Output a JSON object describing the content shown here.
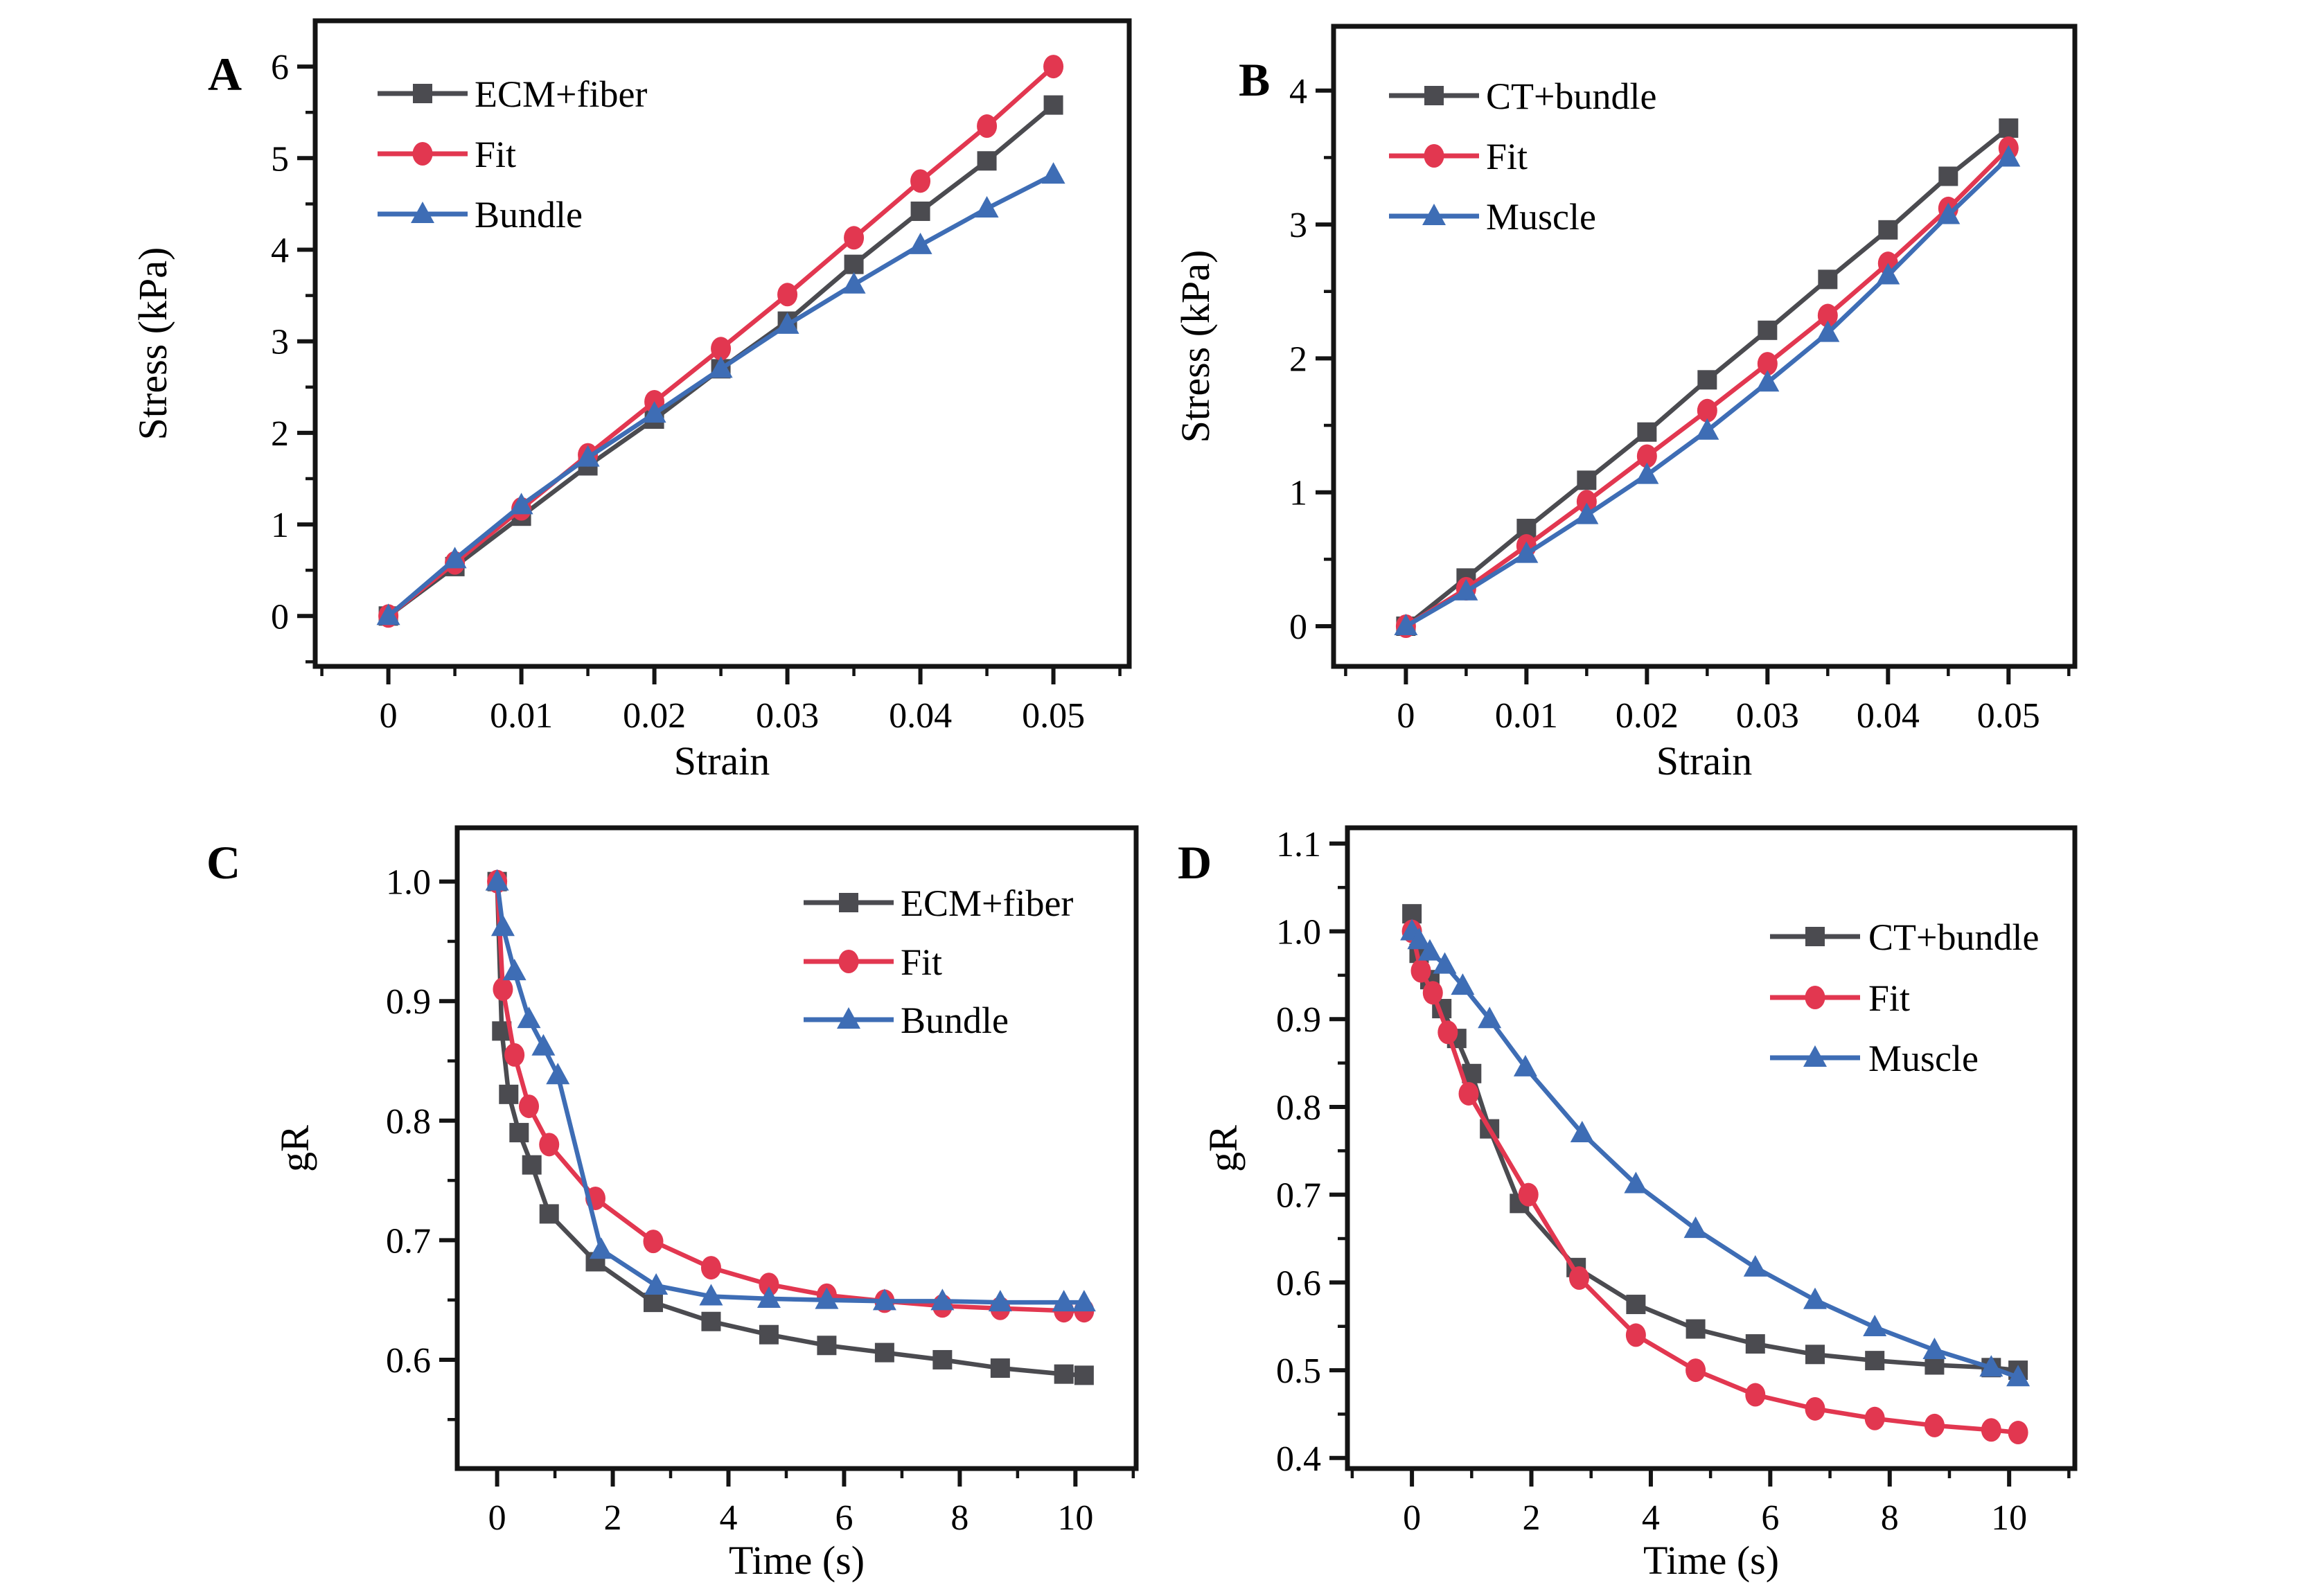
{
  "figure": {
    "background": "#ffffff",
    "panel_letters": [
      "A",
      "B",
      "C",
      "D"
    ]
  },
  "colors": {
    "axis": "#141414",
    "text": "#000000",
    "gray": "#4B4B50",
    "red": "#E23750",
    "blue": "#3E6DB5"
  },
  "chart_data": [
    {
      "id": "A",
      "type": "line",
      "panel_label": "A",
      "title": "",
      "xlabel": "Strain",
      "ylabel": "Stress (kPa)",
      "xlim": [
        -0.0055,
        0.0557
      ],
      "ylim": [
        -0.55,
        6.5
      ],
      "xminor": 0.005,
      "yminor": 0.5,
      "grid": false,
      "legend_position": "top-left",
      "xticks": {
        "values": [
          0,
          0.01,
          0.02,
          0.03,
          0.04,
          0.05
        ],
        "labels": [
          "0",
          "0.01",
          "0.02",
          "0.03",
          "0.04",
          "0.05"
        ]
      },
      "yticks": {
        "values": [
          0,
          1,
          2,
          3,
          4,
          5,
          6
        ],
        "labels": [
          "0",
          "1",
          "2",
          "3",
          "4",
          "5",
          "6"
        ]
      },
      "series": [
        {
          "name": "ECM+fiber",
          "color": "gray",
          "marker": "square",
          "x": [
            0,
            0.005,
            0.01,
            0.015,
            0.02,
            0.025,
            0.03,
            0.035,
            0.04,
            0.045,
            0.05
          ],
          "y": [
            0,
            0.54,
            1.09,
            1.64,
            2.15,
            2.7,
            3.22,
            3.84,
            4.42,
            4.97,
            5.58
          ]
        },
        {
          "name": "Fit",
          "color": "red",
          "marker": "circle",
          "x": [
            0,
            0.005,
            0.01,
            0.015,
            0.02,
            0.025,
            0.03,
            0.035,
            0.04,
            0.045,
            0.05
          ],
          "y": [
            0,
            0.58,
            1.17,
            1.76,
            2.34,
            2.92,
            3.51,
            4.13,
            4.75,
            5.35,
            6.0
          ]
        },
        {
          "name": "Bundle",
          "color": "blue",
          "marker": "triangle",
          "x": [
            0,
            0.005,
            0.01,
            0.015,
            0.02,
            0.025,
            0.03,
            0.035,
            0.04,
            0.045,
            0.05
          ],
          "y": [
            0,
            0.62,
            1.21,
            1.73,
            2.21,
            2.7,
            3.18,
            3.62,
            4.05,
            4.45,
            4.82
          ]
        }
      ]
    },
    {
      "id": "B",
      "type": "line",
      "panel_label": "B",
      "title": "",
      "xlabel": "Strain",
      "ylabel": "Stress (kPa)",
      "xlim": [
        -0.006,
        0.0555
      ],
      "ylim": [
        -0.3,
        4.48
      ],
      "xminor": 0.005,
      "yminor": 0.5,
      "grid": false,
      "legend_position": "top-left",
      "xticks": {
        "values": [
          0,
          0.01,
          0.02,
          0.03,
          0.04,
          0.05
        ],
        "labels": [
          "0",
          "0.01",
          "0.02",
          "0.03",
          "0.04",
          "0.05"
        ]
      },
      "yticks": {
        "values": [
          0,
          1,
          2,
          3,
          4
        ],
        "labels": [
          "0",
          "1",
          "2",
          "3",
          "4"
        ]
      },
      "series": [
        {
          "name": "CT+bundle",
          "color": "gray",
          "marker": "square",
          "x": [
            0,
            0.005,
            0.01,
            0.015,
            0.02,
            0.025,
            0.03,
            0.035,
            0.04,
            0.045,
            0.05
          ],
          "y": [
            0,
            0.36,
            0.73,
            1.09,
            1.45,
            1.84,
            2.21,
            2.59,
            2.96,
            3.36,
            3.72
          ]
        },
        {
          "name": "Fit",
          "color": "red",
          "marker": "circle",
          "x": [
            0,
            0.005,
            0.01,
            0.015,
            0.02,
            0.025,
            0.03,
            0.035,
            0.04,
            0.045,
            0.05
          ],
          "y": [
            0,
            0.28,
            0.6,
            0.93,
            1.27,
            1.61,
            1.96,
            2.32,
            2.71,
            3.12,
            3.57
          ]
        },
        {
          "name": "Muscle",
          "color": "blue",
          "marker": "triangle",
          "x": [
            0,
            0.005,
            0.01,
            0.015,
            0.02,
            0.025,
            0.03,
            0.035,
            0.04,
            0.045,
            0.05
          ],
          "y": [
            0,
            0.26,
            0.54,
            0.83,
            1.13,
            1.46,
            1.82,
            2.19,
            2.62,
            3.07,
            3.5
          ]
        }
      ]
    },
    {
      "id": "C",
      "type": "line",
      "panel_label": "C",
      "title": "",
      "xlabel": "Time (s)",
      "ylabel": "gR",
      "xlim": [
        -0.69,
        11.05
      ],
      "ylim": [
        0.509,
        1.045
      ],
      "xminor": 1,
      "yminor": 0.05,
      "grid": false,
      "legend_position": "top-right",
      "xticks": {
        "values": [
          0,
          2,
          4,
          6,
          8,
          10
        ],
        "labels": [
          "0",
          "2",
          "4",
          "6",
          "8",
          "10"
        ]
      },
      "yticks": {
        "values": [
          0.6,
          0.7,
          0.8,
          0.9,
          1.0
        ],
        "labels": [
          "0.6",
          "0.7",
          "0.8",
          "0.9",
          "1.0"
        ]
      },
      "series": [
        {
          "name": "ECM+fiber",
          "color": "gray",
          "marker": "square",
          "x": [
            0,
            0.08,
            0.2,
            0.38,
            0.6,
            0.9,
            1.7,
            2.7,
            3.7,
            4.7,
            5.7,
            6.7,
            7.7,
            8.7,
            9.8,
            10.15
          ],
          "y": [
            1.0,
            0.875,
            0.822,
            0.79,
            0.763,
            0.722,
            0.682,
            0.648,
            0.632,
            0.621,
            0.612,
            0.606,
            0.6,
            0.593,
            0.588,
            0.587
          ]
        },
        {
          "name": "Fit",
          "color": "red",
          "marker": "circle",
          "x": [
            0,
            0.1,
            0.3,
            0.55,
            0.9,
            1.7,
            2.7,
            3.7,
            4.7,
            5.7,
            6.7,
            7.7,
            8.7,
            9.8,
            10.15
          ],
          "y": [
            1.0,
            0.91,
            0.855,
            0.812,
            0.78,
            0.735,
            0.699,
            0.677,
            0.663,
            0.654,
            0.649,
            0.645,
            0.643,
            0.641,
            0.641
          ]
        },
        {
          "name": "Bundle",
          "color": "blue",
          "marker": "triangle",
          "x": [
            0,
            0.1,
            0.3,
            0.55,
            0.8,
            1.05,
            1.8,
            2.75,
            3.7,
            4.7,
            5.7,
            6.7,
            7.7,
            8.7,
            9.8,
            10.15
          ],
          "y": [
            1.0,
            0.962,
            0.925,
            0.885,
            0.862,
            0.838,
            0.692,
            0.662,
            0.653,
            0.651,
            0.65,
            0.649,
            0.649,
            0.648,
            0.648,
            0.648
          ]
        }
      ]
    },
    {
      "id": "D",
      "type": "line",
      "panel_label": "D",
      "title": "",
      "xlabel": "Time (s)",
      "ylabel": "gR",
      "xlim": [
        -1.08,
        11.1
      ],
      "ylim": [
        0.388,
        1.118
      ],
      "xminor": 1,
      "yminor": 0.05,
      "grid": false,
      "legend_position": "top-right",
      "xticks": {
        "values": [
          0,
          2,
          4,
          6,
          8,
          10
        ],
        "labels": [
          "0",
          "2",
          "4",
          "6",
          "8",
          "10"
        ]
      },
      "yticks": {
        "values": [
          0.4,
          0.5,
          0.6,
          0.7,
          0.8,
          0.9,
          1.0,
          1.1
        ],
        "labels": [
          "0.4",
          "0.5",
          "0.6",
          "0.7",
          "0.8",
          "0.9",
          "1.0",
          "1.1"
        ]
      },
      "series": [
        {
          "name": "CT+bundle",
          "color": "gray",
          "marker": "square",
          "x": [
            0,
            0.12,
            0.3,
            0.5,
            0.75,
            1.0,
            1.3,
            1.8,
            2.75,
            3.75,
            4.75,
            5.75,
            6.75,
            7.75,
            8.75,
            9.7,
            10.15
          ],
          "y": [
            1.02,
            0.975,
            0.945,
            0.912,
            0.878,
            0.838,
            0.775,
            0.69,
            0.617,
            0.575,
            0.547,
            0.53,
            0.518,
            0.511,
            0.506,
            0.503,
            0.5
          ]
        },
        {
          "name": "Fit",
          "color": "red",
          "marker": "circle",
          "x": [
            0,
            0.15,
            0.35,
            0.6,
            0.95,
            1.95,
            2.8,
            3.75,
            4.75,
            5.75,
            6.75,
            7.75,
            8.75,
            9.7,
            10.15
          ],
          "y": [
            1.0,
            0.955,
            0.93,
            0.885,
            0.815,
            0.7,
            0.605,
            0.54,
            0.5,
            0.472,
            0.456,
            0.445,
            0.437,
            0.432,
            0.429
          ]
        },
        {
          "name": "Muscle",
          "color": "blue",
          "marker": "triangle",
          "x": [
            0,
            0.12,
            0.3,
            0.55,
            0.85,
            1.3,
            1.9,
            2.85,
            3.75,
            4.75,
            5.75,
            6.75,
            7.75,
            8.75,
            9.7,
            10.15
          ],
          "y": [
            1.0,
            0.99,
            0.977,
            0.962,
            0.938,
            0.9,
            0.845,
            0.77,
            0.712,
            0.661,
            0.617,
            0.58,
            0.549,
            0.523,
            0.503,
            0.492
          ]
        }
      ]
    }
  ]
}
